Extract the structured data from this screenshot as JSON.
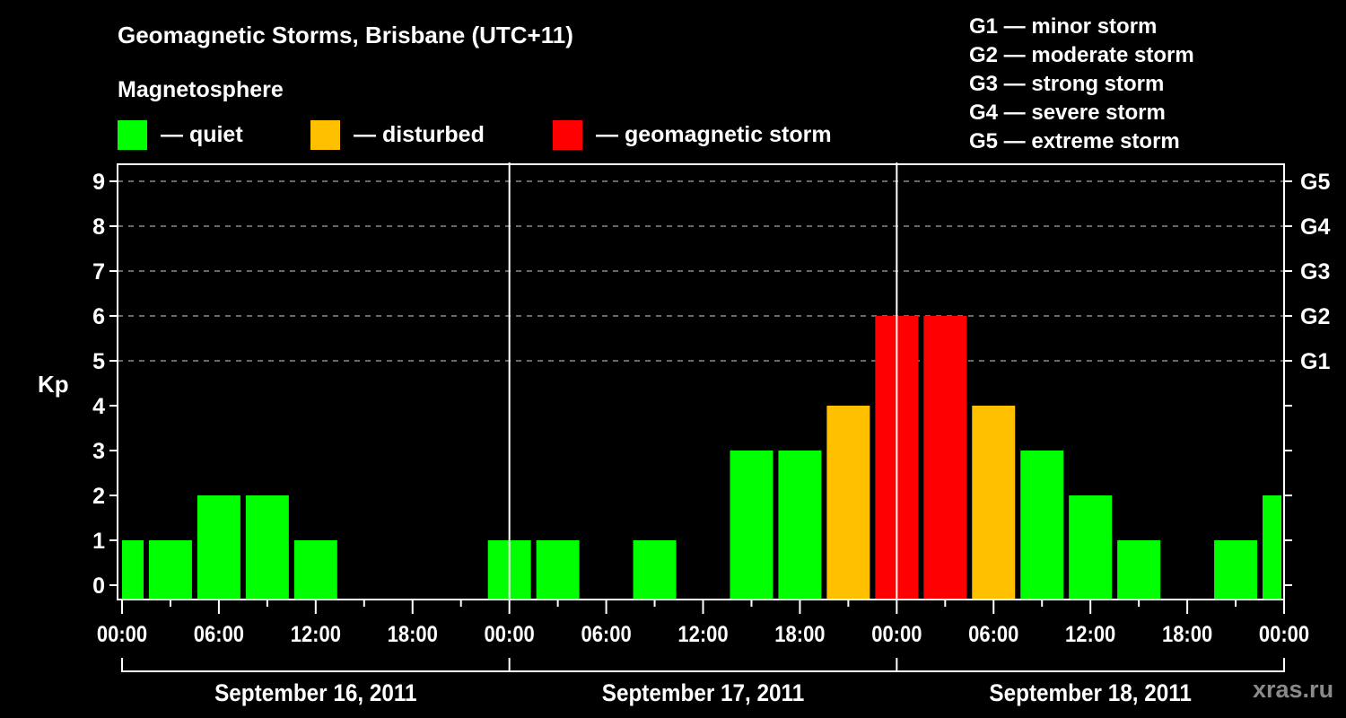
{
  "header": {
    "title": "Geomagnetic Storms, Brisbane (UTC+11)",
    "subtitle": "Magnetosphere"
  },
  "legend": {
    "items": [
      {
        "label": "— quiet",
        "color": "#00ff00"
      },
      {
        "label": "— disturbed",
        "color": "#ffc000"
      },
      {
        "label": "— geomagnetic storm",
        "color": "#ff0000"
      }
    ]
  },
  "g_legend": [
    "G1 — minor storm",
    "G2 — moderate storm",
    "G3 — strong storm",
    "G4 — severe storm",
    "G5 — extreme storm"
  ],
  "watermark": "xras.ru",
  "chart_data": {
    "type": "bar",
    "title": "Geomagnetic Storms, Brisbane (UTC+11)",
    "ylabel": "Kp",
    "xlabel": "",
    "ylim": [
      0,
      9
    ],
    "yticks": [
      0,
      1,
      2,
      3,
      4,
      5,
      6,
      7,
      8,
      9
    ],
    "right_axis_labels": [
      {
        "kp": 5,
        "label": "G1"
      },
      {
        "kp": 6,
        "label": "G2"
      },
      {
        "kp": 7,
        "label": "G3"
      },
      {
        "kp": 8,
        "label": "G4"
      },
      {
        "kp": 9,
        "label": "G5"
      }
    ],
    "xtick_labels": [
      "00:00",
      "06:00",
      "12:00",
      "18:00",
      "00:00",
      "06:00",
      "12:00",
      "18:00",
      "00:00",
      "06:00",
      "12:00",
      "18:00",
      "00:00"
    ],
    "day_labels": [
      "September 16, 2011",
      "September 17, 2011",
      "September 18, 2011"
    ],
    "grid": "horizontal dashed at Kp 5-9",
    "interval_hours": 3,
    "categories": [
      "Sep 16 00:00",
      "Sep 16 03:00",
      "Sep 16 06:00",
      "Sep 16 09:00",
      "Sep 16 12:00",
      "Sep 16 15:00",
      "Sep 16 18:00",
      "Sep 16 21:00",
      "Sep 17 00:00",
      "Sep 17 03:00",
      "Sep 17 06:00",
      "Sep 17 09:00",
      "Sep 17 12:00",
      "Sep 17 15:00",
      "Sep 17 18:00",
      "Sep 17 21:00",
      "Sep 18 00:00",
      "Sep 18 03:00",
      "Sep 18 06:00",
      "Sep 18 09:00",
      "Sep 18 12:00",
      "Sep 18 15:00",
      "Sep 18 18:00",
      "Sep 18 21:00",
      "Sep 19 00:00"
    ],
    "values": [
      1,
      1,
      2,
      2,
      1,
      0,
      0,
      0,
      1,
      1,
      0,
      1,
      0,
      3,
      3,
      4,
      6,
      6,
      4,
      3,
      2,
      1,
      0,
      1,
      2
    ],
    "color_rule": {
      "quiet": "Kp <= 3 → #00ff00",
      "disturbed": "Kp = 4 → #ffc000",
      "storm": "Kp >= 5 → #ff0000"
    }
  }
}
